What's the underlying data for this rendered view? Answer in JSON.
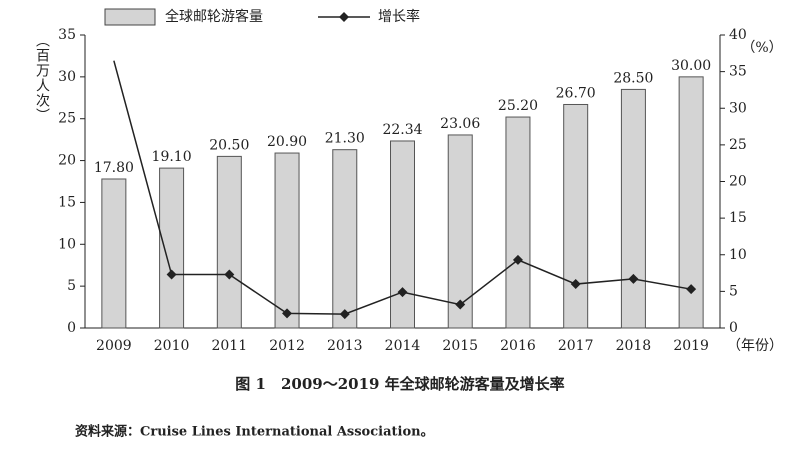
{
  "chart_data": {
    "type": "bar_line",
    "caption": "图 1　2009～2019 年全球邮轮游客量及增长率",
    "source": "资料来源：Cruise Lines International Association。",
    "ylabel": "（百万人次）",
    "y2label": "（%）",
    "xlabel": "（年份）",
    "categories": [
      "2009",
      "2010",
      "2011",
      "2012",
      "2013",
      "2014",
      "2015",
      "2016",
      "2017",
      "2018",
      "2019"
    ],
    "series": [
      {
        "name": "全球邮轮游客量",
        "type": "bar",
        "color": "#d4d4d4",
        "values": [
          17.8,
          19.1,
          20.5,
          20.9,
          21.3,
          22.34,
          23.06,
          25.2,
          26.7,
          28.5,
          30.0
        ],
        "value_labels": [
          "17.80",
          "19.10",
          "20.50",
          "20.90",
          "21.30",
          "22.34",
          "23.06",
          "25.20",
          "26.70",
          "28.50",
          "30.00"
        ]
      },
      {
        "name": "增长率",
        "type": "line",
        "axis": "y2",
        "color": "#222222",
        "values": [
          36.5,
          7.3,
          7.3,
          2.0,
          1.9,
          4.9,
          3.2,
          9.3,
          6.0,
          6.7,
          5.3
        ]
      }
    ],
    "ylim": [
      0,
      35
    ],
    "yticks": [
      0,
      5,
      10,
      15,
      20,
      25,
      30,
      35
    ],
    "y2lim": [
      0,
      40
    ],
    "y2ticks": [
      0,
      5,
      10,
      15,
      20,
      25,
      30,
      35,
      40
    ]
  }
}
